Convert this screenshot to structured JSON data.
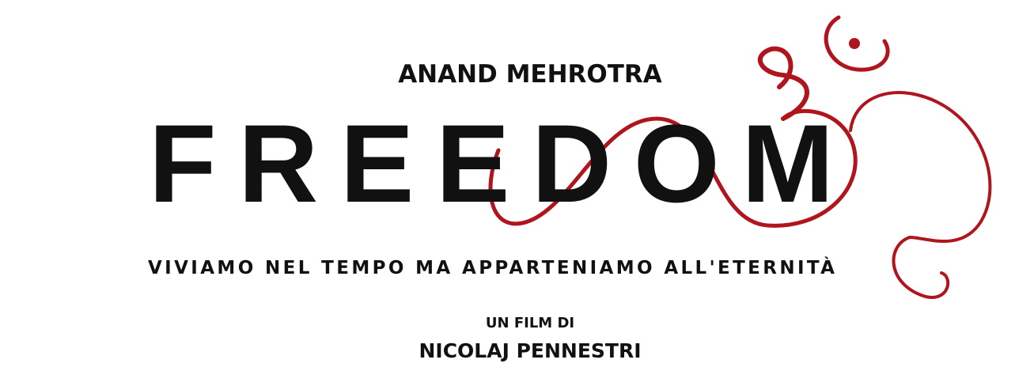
{
  "credit": "ANAND MEHROTRA",
  "title": "FREEDOM",
  "tagline": "VIVIAMO NEL TEMPO MA APPARTENIAMO ALL'ETERNITÀ",
  "byline": "UN FILM DI",
  "director": "NICOLAJ PENNESTRI"
}
